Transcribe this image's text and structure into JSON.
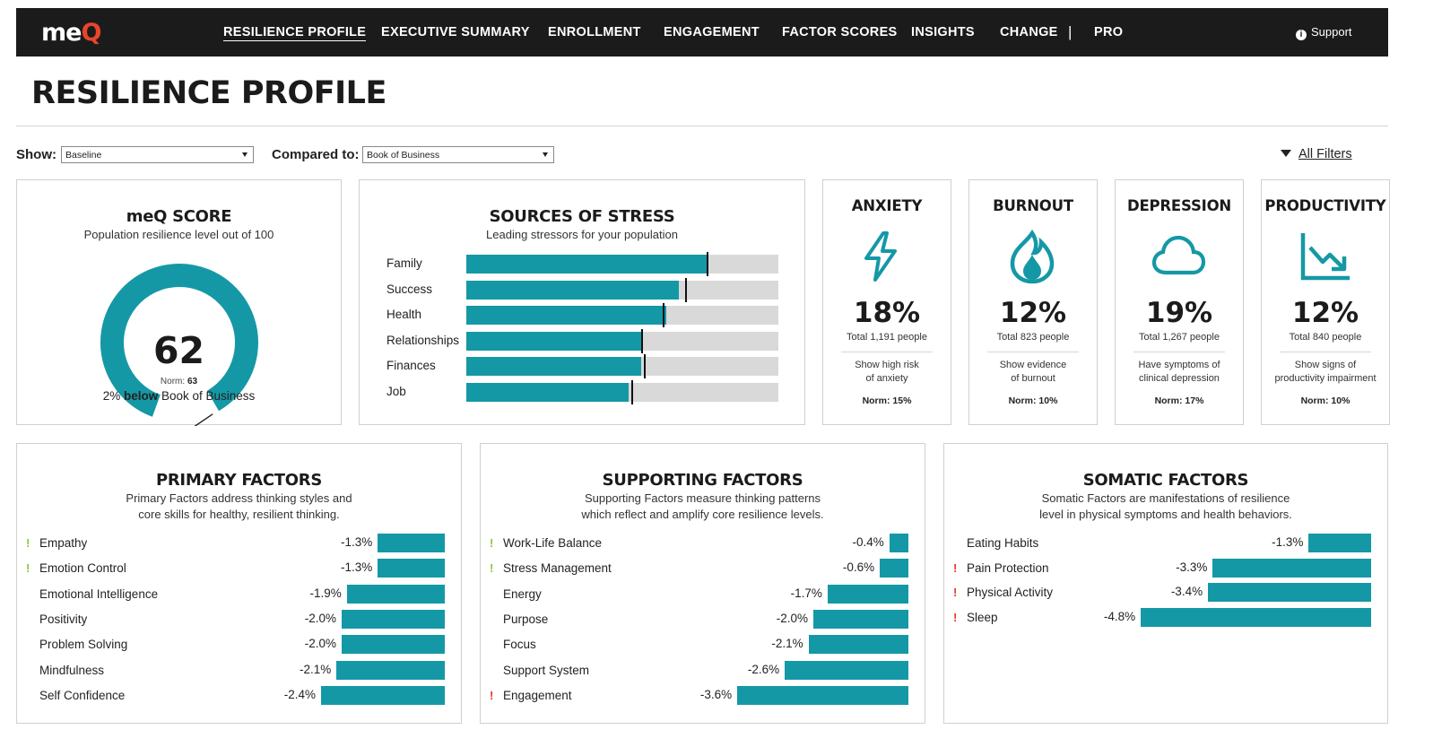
{
  "brand": {
    "logo_text": "me",
    "logo_q": "Q",
    "accent": "#1598a6",
    "logo_accent": "#e8452c"
  },
  "nav": {
    "items": [
      "RESILIENCE PROFILE",
      "EXECUTIVE SUMMARY",
      "ENROLLMENT",
      "ENGAGEMENT",
      "FACTOR SCORES",
      "INSIGHTS",
      "CHANGE",
      "PRO"
    ],
    "active": "RESILIENCE PROFILE",
    "separator": "|",
    "support": "Support",
    "support_icon": "info-icon"
  },
  "page_title": "RESILIENCE PROFILE",
  "filters": {
    "show_label": "Show:",
    "show_value": "Baseline",
    "compare_label": "Compared to:",
    "compare_value": "Book of Business",
    "all_filters": "All Filters",
    "all_filters_icon": "funnel-icon"
  },
  "score_card": {
    "title": "meQ SCORE",
    "subtitle": "Population resilience level out of 100",
    "score": "62",
    "score_value": 62,
    "norm_label": "Norm:",
    "norm": "63",
    "norm_value": 63,
    "compare_pct": "2%",
    "compare_word": "below",
    "compare_target": "Book of Business"
  },
  "stress_card": {
    "title": "SOURCES OF STRESS",
    "subtitle": "Leading stressors for your population"
  },
  "chart_data": [
    {
      "type": "bar",
      "title": "SOURCES OF STRESS",
      "subtitle": "Leading stressors for your population",
      "categories": [
        "Family",
        "Success",
        "Health",
        "Relationships",
        "Finances",
        "Job"
      ],
      "series": [
        {
          "values": [
            0.77,
            0.68,
            0.64,
            0.56,
            0.56,
            0.52
          ]
        },
        {
          "values": [
            0.77,
            0.7,
            0.63,
            0.56,
            0.57,
            0.53
          ]
        }
      ],
      "xlim": [
        0,
        1
      ]
    },
    {
      "type": "bar",
      "title": "PRIMARY FACTORS",
      "categories": [
        "Empathy",
        "Emotion Control",
        "Emotional Intelligence",
        "Positivity",
        "Problem Solving",
        "Mindfulness",
        "Self Confidence"
      ],
      "values": [
        -1.3,
        -1.3,
        -1.9,
        -2.0,
        -2.0,
        -2.1,
        -2.4
      ]
    },
    {
      "type": "bar",
      "title": "SUPPORTING FACTORS",
      "categories": [
        "Work-Life Balance",
        "Stress Management",
        "Energy",
        "Purpose",
        "Focus",
        "Support System",
        "Engagement"
      ],
      "values": [
        -0.4,
        -0.6,
        -1.7,
        -2.0,
        -2.1,
        -2.6,
        -3.6
      ]
    },
    {
      "type": "bar",
      "title": "SOMATIC FACTORS",
      "categories": [
        "Eating Habits",
        "Pain Protection",
        "Physical Activity",
        "Sleep"
      ],
      "values": [
        -1.3,
        -3.3,
        -3.4,
        -4.8
      ]
    }
  ],
  "metrics": [
    {
      "key": "anxiety",
      "title": "ANXIETY",
      "icon": "lightning-icon",
      "value": "18%",
      "total": "Total 1,191 people",
      "desc1": "Show high risk",
      "desc2": "of anxiety",
      "norm": "Norm: 15%"
    },
    {
      "key": "burnout",
      "title": "BURNOUT",
      "icon": "flame-icon",
      "value": "12%",
      "total": "Total 823 people",
      "desc1": "Show evidence",
      "desc2": "of burnout",
      "norm": "Norm: 10%"
    },
    {
      "key": "depression",
      "title": "DEPRESSION",
      "icon": "cloud-icon",
      "value": "19%",
      "total": "Total 1,267 people",
      "desc1": "Have symptoms of",
      "desc2": "clinical depression",
      "norm": "Norm: 17%"
    },
    {
      "key": "productivity",
      "title": "PRODUCTIVITY",
      "icon": "trending-down-icon",
      "value": "12%",
      "total": "Total 840 people",
      "desc1": "Show signs of",
      "desc2": "productivity impairment",
      "norm": "Norm: 10%"
    }
  ],
  "factors": {
    "primary": {
      "title": "PRIMARY FACTORS",
      "sub1": "Primary Factors address thinking styles and",
      "sub2": "core skills for healthy, resilient thinking.",
      "rows": [
        {
          "label": "Empathy",
          "value": "-1.3%",
          "flag": "!",
          "flag_color": "#8cc63f"
        },
        {
          "label": "Emotion Control",
          "value": "-1.3%",
          "flag": "!",
          "flag_color": "#8cc63f"
        },
        {
          "label": "Emotional Intelligence",
          "value": "-1.9%",
          "flag": "",
          "flag_color": ""
        },
        {
          "label": "Positivity",
          "value": "-2.0%",
          "flag": "",
          "flag_color": ""
        },
        {
          "label": "Problem Solving",
          "value": "-2.0%",
          "flag": "",
          "flag_color": ""
        },
        {
          "label": "Mindfulness",
          "value": "-2.1%",
          "flag": "",
          "flag_color": ""
        },
        {
          "label": "Self Confidence",
          "value": "-2.4%",
          "flag": "",
          "flag_color": ""
        }
      ]
    },
    "supporting": {
      "title": "SUPPORTING FACTORS",
      "sub1": "Supporting Factors measure thinking patterns",
      "sub2": "which reflect and amplify core resilience levels.",
      "rows": [
        {
          "label": "Work-Life Balance",
          "value": "-0.4%",
          "flag": "!",
          "flag_color": "#8cc63f"
        },
        {
          "label": "Stress Management",
          "value": "-0.6%",
          "flag": "!",
          "flag_color": "#8cc63f"
        },
        {
          "label": "Energy",
          "value": "-1.7%",
          "flag": "",
          "flag_color": ""
        },
        {
          "label": "Purpose",
          "value": "-2.0%",
          "flag": "",
          "flag_color": ""
        },
        {
          "label": "Focus",
          "value": "-2.1%",
          "flag": "",
          "flag_color": ""
        },
        {
          "label": "Support System",
          "value": "-2.6%",
          "flag": "",
          "flag_color": ""
        },
        {
          "label": "Engagement",
          "value": "-3.6%",
          "flag": "!",
          "flag_color": "#e03a2f"
        }
      ]
    },
    "somatic": {
      "title": "SOMATIC FACTORS",
      "sub1": "Somatic Factors are manifestations of resilience",
      "sub2": "level in physical symptoms and health behaviors.",
      "rows": [
        {
          "label": "Eating Habits",
          "value": "-1.3%",
          "flag": "",
          "flag_color": ""
        },
        {
          "label": "Pain Protection",
          "value": "-3.3%",
          "flag": "!",
          "flag_color": "#e03a2f"
        },
        {
          "label": "Physical Activity",
          "value": "-3.4%",
          "flag": "!",
          "flag_color": "#e03a2f"
        },
        {
          "label": "Sleep",
          "value": "-4.8%",
          "flag": "!",
          "flag_color": "#e03a2f"
        }
      ]
    }
  }
}
